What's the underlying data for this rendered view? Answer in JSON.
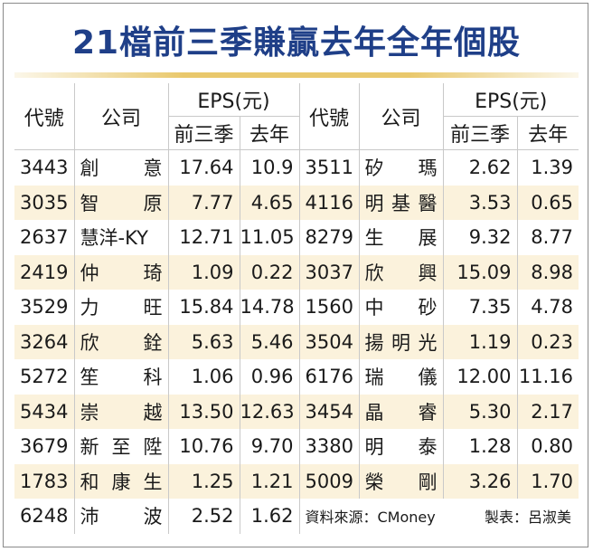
{
  "title": "21檔前三季賺贏去年全年個股",
  "headers": {
    "code": "代號",
    "company": "公司",
    "eps": "EPS(元)",
    "q3": "前三季",
    "last_year": "去年"
  },
  "left_rows": [
    {
      "code": "3443",
      "name": "創意",
      "q3": "17.64",
      "ly": "10.9"
    },
    {
      "code": "3035",
      "name": "智原",
      "q3": "7.77",
      "ly": "4.65"
    },
    {
      "code": "2637",
      "name": "慧洋-KY",
      "q3": "12.71",
      "ly": "11.05"
    },
    {
      "code": "2419",
      "name": "仲琦",
      "q3": "1.09",
      "ly": "0.22"
    },
    {
      "code": "3529",
      "name": "力旺",
      "q3": "15.84",
      "ly": "14.78"
    },
    {
      "code": "3264",
      "name": "欣銓",
      "q3": "5.63",
      "ly": "5.46"
    },
    {
      "code": "5272",
      "name": "笙科",
      "q3": "1.06",
      "ly": "0.96"
    },
    {
      "code": "5434",
      "name": "崇越",
      "q3": "13.50",
      "ly": "12.63"
    },
    {
      "code": "3679",
      "name": "新至陞",
      "q3": "10.76",
      "ly": "9.70"
    },
    {
      "code": "1783",
      "name": "和康生",
      "q3": "1.25",
      "ly": "1.21"
    },
    {
      "code": "6248",
      "name": "沛波",
      "q3": "2.52",
      "ly": "1.62"
    }
  ],
  "right_rows": [
    {
      "code": "3511",
      "name": "矽瑪",
      "q3": "2.62",
      "ly": "1.39"
    },
    {
      "code": "4116",
      "name": "明基醫",
      "q3": "3.53",
      "ly": "0.65"
    },
    {
      "code": "8279",
      "name": "生展",
      "q3": "9.32",
      "ly": "8.77"
    },
    {
      "code": "3037",
      "name": "欣興",
      "q3": "15.09",
      "ly": "8.98"
    },
    {
      "code": "1560",
      "name": "中砂",
      "q3": "7.35",
      "ly": "4.78"
    },
    {
      "code": "3504",
      "name": "揚明光",
      "q3": "1.19",
      "ly": "0.23"
    },
    {
      "code": "6176",
      "name": "瑞儀",
      "q3": "12.00",
      "ly": "11.16"
    },
    {
      "code": "3454",
      "name": "晶睿",
      "q3": "5.30",
      "ly": "2.17"
    },
    {
      "code": "3380",
      "name": "明泰",
      "q3": "1.28",
      "ly": "0.80"
    },
    {
      "code": "5009",
      "name": "榮剛",
      "q3": "3.26",
      "ly": "1.70"
    }
  ],
  "footer": {
    "source": "資料來源：CMoney",
    "author": "製表：呂淑美"
  },
  "colors": {
    "title": "#1f3f88",
    "zebra": "#fbf2dc",
    "rule": "#e9c86c"
  }
}
